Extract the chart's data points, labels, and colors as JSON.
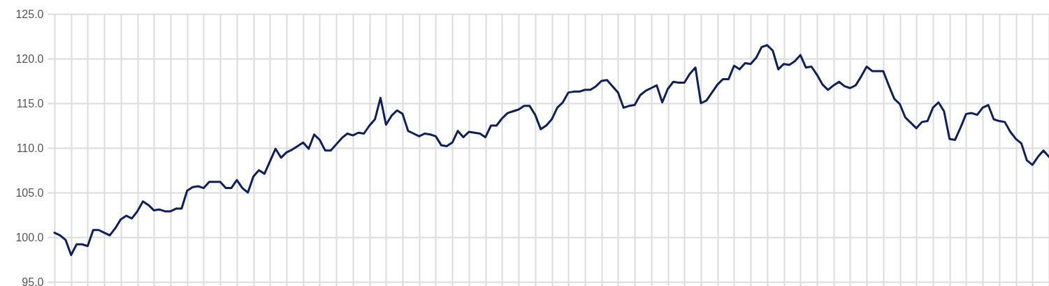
{
  "chart_data": {
    "type": "line",
    "categories": [
      null,
      null,
      null,
      null,
      null,
      null,
      null,
      null,
      null,
      null,
      null,
      null,
      null,
      null,
      null,
      null,
      null,
      null,
      null,
      null,
      null,
      null,
      null,
      null,
      null,
      null,
      null,
      null,
      null,
      null,
      null,
      null,
      null,
      null,
      null,
      null,
      null,
      null,
      null,
      null,
      null,
      null,
      null,
      null,
      null,
      null,
      null,
      null,
      null,
      null,
      null,
      null,
      null,
      null,
      null,
      null,
      null,
      null,
      null,
      null,
      null,
      null,
      null,
      null,
      null,
      null,
      null,
      null,
      null,
      null,
      null,
      null,
      null,
      null,
      null,
      null,
      null,
      null,
      null,
      null,
      null,
      null,
      null,
      null,
      null,
      null,
      null,
      null,
      null,
      null,
      null,
      null,
      null,
      null,
      null,
      null,
      null,
      null,
      null,
      null,
      null,
      null,
      null,
      null,
      null,
      null,
      null,
      null,
      null,
      null,
      null,
      null,
      null,
      null,
      null,
      null,
      null,
      null,
      null,
      null,
      null,
      null,
      null,
      null,
      null,
      null,
      null,
      null,
      null,
      null,
      null,
      null,
      null,
      null,
      null,
      null,
      null,
      null,
      null,
      null,
      null,
      null,
      null,
      null,
      null,
      null,
      null,
      null,
      null,
      null,
      null,
      null,
      null,
      null,
      null,
      null,
      null,
      null,
      null,
      null,
      null,
      null,
      null,
      null,
      null,
      null,
      null,
      null,
      null,
      null,
      null,
      null,
      null,
      null,
      null,
      null,
      null,
      null,
      null,
      null,
      null
    ],
    "series": [
      {
        "color": "#0d1f5c",
        "values": [
          100.5,
          100.2,
          99.7,
          98.0,
          99.2,
          99.2,
          99.0,
          100.8,
          100.8,
          100.5,
          100.2,
          101.0,
          102.0,
          102.4,
          102.1,
          102.9,
          104.0,
          103.6,
          103.0,
          103.1,
          102.9,
          102.9,
          103.2,
          103.2,
          105.2,
          105.6,
          105.7,
          105.5,
          106.2,
          106.2,
          106.2,
          105.5,
          105.5,
          106.4,
          105.5,
          105.0,
          106.8,
          107.5,
          107.1,
          108.5,
          109.9,
          108.9,
          109.5,
          109.8,
          110.2,
          110.6,
          109.9,
          111.5,
          110.9,
          109.7,
          109.7,
          110.4,
          111.1,
          111.6,
          111.4,
          111.7,
          111.6,
          112.5,
          113.2,
          115.6,
          112.6,
          113.6,
          114.2,
          113.8,
          111.9,
          111.6,
          111.3,
          111.6,
          111.5,
          111.3,
          110.3,
          110.2,
          110.6,
          111.9,
          111.2,
          111.8,
          111.7,
          111.6,
          111.2,
          112.5,
          112.5,
          113.3,
          113.9,
          114.1,
          114.3,
          114.7,
          114.7,
          113.7,
          112.1,
          112.5,
          113.2,
          114.5,
          115.1,
          116.2,
          116.3,
          116.3,
          116.5,
          116.5,
          116.9,
          117.5,
          117.6,
          116.9,
          116.2,
          114.5,
          114.7,
          114.8,
          115.9,
          116.4,
          116.7,
          117.0,
          115.1,
          116.6,
          117.4,
          117.3,
          117.3,
          118.3,
          119.0,
          115.0,
          115.3,
          116.2,
          117.1,
          117.7,
          117.7,
          119.2,
          118.8,
          119.5,
          119.4,
          120.1,
          121.3,
          121.5,
          120.9,
          118.8,
          119.4,
          119.3,
          119.7,
          120.4,
          119.0,
          119.1,
          118.2,
          117.1,
          116.5,
          117.0,
          117.4,
          116.9,
          116.7,
          117.0,
          118.0,
          119.1,
          118.6,
          118.6,
          118.6,
          117.0,
          115.5,
          114.9,
          113.4,
          112.8,
          112.2,
          112.9,
          113.0,
          114.5,
          115.1,
          114.1,
          111.0,
          110.9,
          112.3,
          113.8,
          113.9,
          113.7,
          114.5,
          114.8,
          113.2,
          113.0,
          112.9,
          111.8,
          111.0,
          110.5,
          108.6,
          108.1,
          109.0,
          109.7,
          109.0
        ]
      }
    ],
    "ylim": [
      95,
      125
    ],
    "yticks": [
      {
        "value": 95,
        "label": "95.0"
      },
      {
        "value": 100,
        "label": "100.0"
      },
      {
        "value": 105,
        "label": "105.0"
      },
      {
        "value": 110,
        "label": "110.0"
      },
      {
        "value": 115,
        "label": "115.0"
      },
      {
        "value": 120,
        "label": "120.0"
      },
      {
        "value": 125,
        "label": "125.0"
      }
    ],
    "grid": true,
    "tick_labels": "y",
    "marker": "none",
    "line_style": "solid"
  }
}
